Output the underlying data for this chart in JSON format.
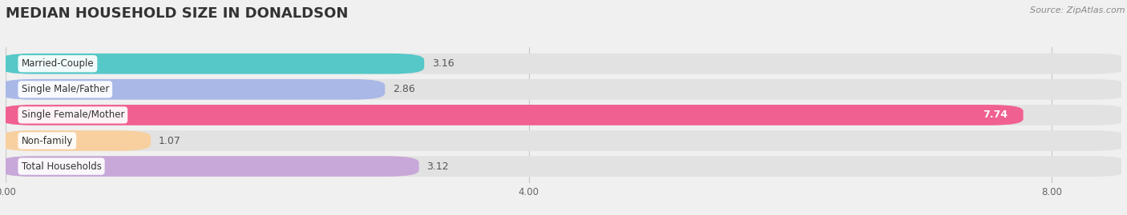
{
  "title": "MEDIAN HOUSEHOLD SIZE IN DONALDSON",
  "source": "Source: ZipAtlas.com",
  "categories": [
    "Married-Couple",
    "Single Male/Father",
    "Single Female/Mother",
    "Non-family",
    "Total Households"
  ],
  "values": [
    3.16,
    2.86,
    7.74,
    1.07,
    3.12
  ],
  "bar_colors": [
    "#56c8c8",
    "#aab8e8",
    "#f06090",
    "#f8d0a0",
    "#c8a8d8"
  ],
  "background_color": "#f0f0f0",
  "track_color": "#e2e2e2",
  "xlim_max": 8.53,
  "xticks": [
    0.0,
    4.0,
    8.0
  ],
  "xtick_labels": [
    "0.00",
    "4.00",
    "8.00"
  ],
  "title_fontsize": 13,
  "label_fontsize": 8.5,
  "value_fontsize": 9,
  "source_fontsize": 8
}
